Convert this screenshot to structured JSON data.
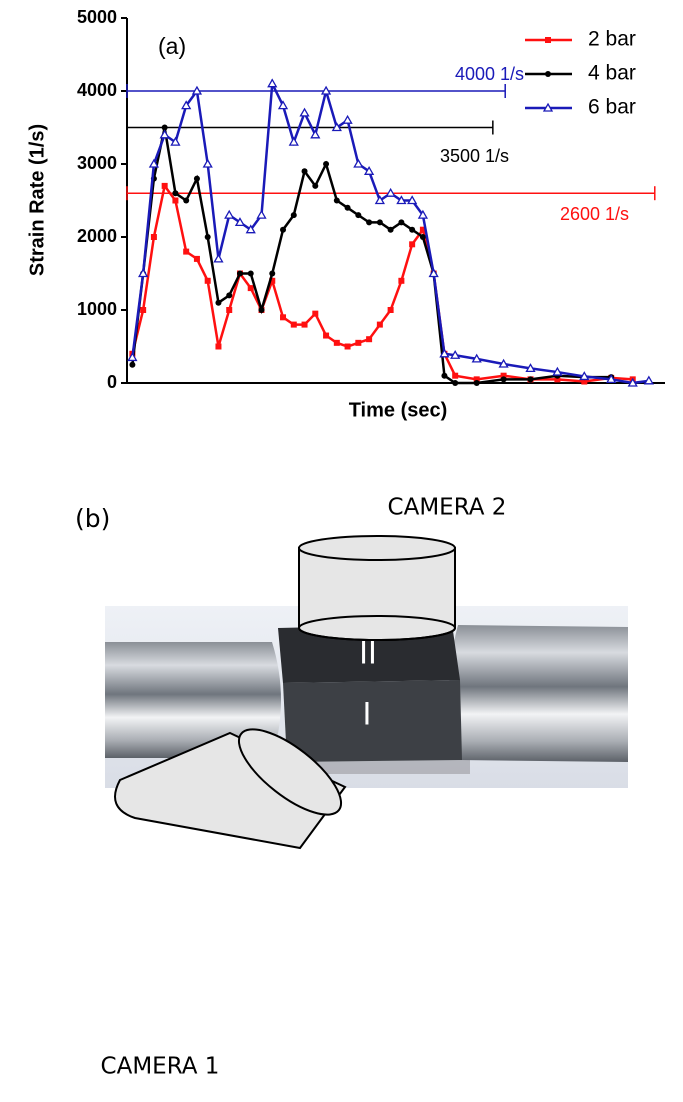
{
  "chart_data": {
    "type": "line",
    "title": "(a)",
    "xlabel": "Time (sec)",
    "ylabel": "Strain Rate (1/s)",
    "x": [
      1,
      3,
      5,
      7,
      9,
      11,
      13,
      15,
      17,
      19,
      21,
      23,
      25,
      27,
      29,
      31,
      33,
      35,
      37,
      39,
      41,
      43,
      45,
      47,
      49,
      51,
      53,
      55,
      57,
      59,
      61,
      65,
      70,
      75,
      80,
      85,
      90,
      94,
      97
    ],
    "xlim": [
      0,
      100
    ],
    "ylim": [
      0,
      5000
    ],
    "yticks": [
      0,
      1000,
      2000,
      3000,
      4000,
      5000
    ],
    "legend": "upper right",
    "series": [
      {
        "name": "2 bar",
        "color": "#ff1010",
        "marker": "square",
        "values": [
          400,
          1000,
          2000,
          2700,
          2500,
          1800,
          1700,
          1400,
          500,
          1000,
          1500,
          1300,
          1000,
          1400,
          900,
          800,
          800,
          950,
          650,
          550,
          500,
          550,
          600,
          800,
          1000,
          1400,
          1900,
          2100,
          1500,
          400,
          100,
          50,
          100,
          50,
          50,
          20,
          70,
          50,
          null
        ]
      },
      {
        "name": "4 bar",
        "color": "#000000",
        "marker": "circle",
        "values": [
          250,
          1500,
          2800,
          3500,
          2600,
          2500,
          2800,
          2000,
          1100,
          1200,
          1500,
          1500,
          1000,
          1500,
          2100,
          2300,
          2900,
          2700,
          3000,
          2500,
          2400,
          2300,
          2200,
          2200,
          2100,
          2200,
          2100,
          2000,
          1500,
          100,
          0,
          0,
          50,
          50,
          100,
          80,
          80,
          null,
          null
        ]
      },
      {
        "name": "6 bar",
        "color": "#1a1ab8",
        "marker": "triangle",
        "values": [
          350,
          1500,
          3000,
          3400,
          3300,
          3800,
          4000,
          3000,
          1700,
          2300,
          2200,
          2100,
          2300,
          4100,
          3800,
          3300,
          3700,
          3400,
          4000,
          3500,
          3600,
          3000,
          2900,
          2500,
          2600,
          2500,
          2500,
          2300,
          1500,
          400,
          380,
          330,
          260,
          200,
          150,
          90,
          50,
          0,
          30
        ]
      }
    ],
    "annotations": [
      {
        "label": "4000 1/s",
        "value": 4000,
        "color": "#1a1ab8",
        "xlim": [
          0,
          70.3
        ]
      },
      {
        "label": "3500 1/s",
        "value": 3500,
        "color": "#000000",
        "xlim": [
          0,
          68
        ]
      },
      {
        "label": "2600 1/s",
        "value": 2600,
        "color": "#ff1010",
        "xlim": [
          0,
          98.1
        ]
      }
    ]
  },
  "diagram": {
    "label": "(b)",
    "camera_top": "CAMERA 2",
    "camera_bottom": "CAMERA 1",
    "face_top": "II",
    "face_front": "I"
  }
}
